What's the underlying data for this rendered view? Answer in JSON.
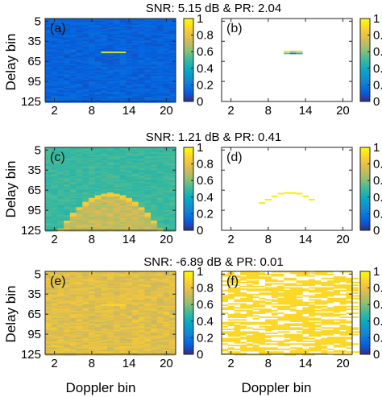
{
  "figure": {
    "xlabel": "Doppler bin",
    "ylabel": "Delay bin",
    "x_ticks": [
      2,
      8,
      14,
      20
    ],
    "y_ticks": [
      5,
      35,
      65,
      95,
      125
    ],
    "xlim": [
      0.5,
      21.5
    ],
    "ylim": [
      125,
      1
    ],
    "colorbar_ticks": [
      0,
      0.2,
      0.4,
      0.6,
      0.8,
      1
    ],
    "colorbar_ticklabels": [
      "0",
      "0.2",
      "0.4",
      "0.6",
      "0.8",
      "1"
    ],
    "colormap": "parula",
    "colormap_stops": [
      "#352a87",
      "#0363e1",
      "#1485d4",
      "#06a7c6",
      "#38b99e",
      "#92bf73",
      "#d9ba56",
      "#fcce2e",
      "#f9fb0e"
    ]
  },
  "rows": [
    {
      "title": "SNR: 5.15 dB & PR: 2.04"
    },
    {
      "title": "SNR: 1.21 dB & PR: 0.41"
    },
    {
      "title": "SNR: -6.89 dB & PR: 0.01"
    }
  ],
  "chart_data": [
    {
      "type": "heatmap",
      "panel": "(a)",
      "x_bins": 21,
      "y_bins": 125,
      "clim": [
        0,
        1
      ],
      "background_level": 0.13,
      "target": {
        "doppler_bins": [
          10,
          13
        ],
        "delay_bin": 51,
        "peak": 1.0
      }
    },
    {
      "type": "heatmap",
      "panel": "(b)",
      "x_bins": 21,
      "y_bins": 125,
      "clim": [
        0,
        1
      ],
      "background": "white",
      "detections": [
        {
          "doppler": 11,
          "delay": 50,
          "value": 0.95
        },
        {
          "doppler": 12,
          "delay": 50,
          "value": 0.78
        },
        {
          "doppler": 13,
          "delay": 50,
          "value": 0.9
        },
        {
          "doppler": 11,
          "delay": 53,
          "value": 0.55
        },
        {
          "doppler": 12,
          "delay": 53,
          "value": 0.2
        },
        {
          "doppler": 13,
          "delay": 53,
          "value": 0.45
        }
      ]
    },
    {
      "type": "heatmap",
      "panel": "(c)",
      "x_bins": 21,
      "y_bins": 125,
      "clim": [
        0,
        1
      ],
      "background_level": 0.5,
      "arc": {
        "apex_doppler": 11,
        "apex_delay": 72,
        "end_delay": 125,
        "end_dopplers": [
          3,
          19
        ],
        "level": 0.72
      }
    },
    {
      "type": "heatmap",
      "panel": "(d)",
      "x_bins": 21,
      "y_bins": 125,
      "clim": [
        0,
        1
      ],
      "background": "white",
      "detections": [
        {
          "doppler": 10,
          "delay": 70,
          "value": 0.95
        },
        {
          "doppler": 11,
          "delay": 69,
          "value": 0.95
        },
        {
          "doppler": 12,
          "delay": 69,
          "value": 0.95
        },
        {
          "doppler": 13,
          "delay": 70,
          "value": 0.95
        },
        {
          "doppler": 9,
          "delay": 74,
          "value": 0.95
        },
        {
          "doppler": 14,
          "delay": 74,
          "value": 0.95
        },
        {
          "doppler": 8,
          "delay": 79,
          "value": 0.95
        },
        {
          "doppler": 15,
          "delay": 79,
          "value": 0.95
        },
        {
          "doppler": 7,
          "delay": 84,
          "value": 0.95
        }
      ]
    },
    {
      "type": "heatmap",
      "panel": "(e)",
      "x_bins": 21,
      "y_bins": 125,
      "clim": [
        0,
        1
      ],
      "background_level": 0.78,
      "target": {
        "doppler_bins": [
          10,
          13
        ],
        "delay_bin": 51,
        "peak": 0.92
      }
    },
    {
      "type": "heatmap",
      "panel": "(f)",
      "x_bins": 21,
      "y_bins": 125,
      "clim": [
        0,
        1
      ],
      "background": "white",
      "detection_density": 0.5,
      "detection_value": 0.9
    }
  ]
}
